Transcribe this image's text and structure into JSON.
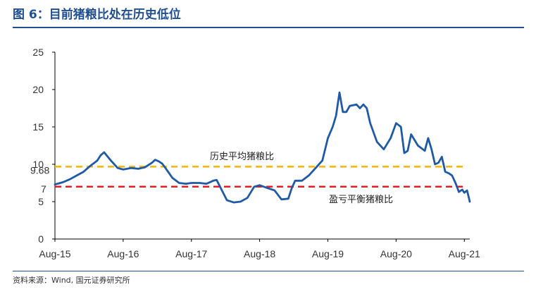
{
  "title": "图 6：目前猪粮比处在历史低位",
  "source": "资料来源：Wind, 国元证券研究所",
  "colors": {
    "title": "#1f4e91",
    "series": "#1f5aa6",
    "ref_avg": "#f2b40f",
    "ref_break_even": "#e02020",
    "ref_break_even_label": "#e02020"
  },
  "chart_data": {
    "type": "line",
    "title": "",
    "xlabel": "",
    "ylabel": "",
    "ylim": [
      0,
      25
    ],
    "yticks": [
      "0",
      "5",
      "10",
      "15",
      "20",
      "25"
    ],
    "xticks": [
      "Aug-15",
      "Aug-16",
      "Aug-17",
      "Aug-18",
      "Aug-19",
      "Aug-20",
      "Aug-21"
    ],
    "grid": false,
    "reference_lines": [
      {
        "label": "历史平均猪粮比",
        "value": 9.68,
        "value_label": "9.68",
        "style": "dashed"
      },
      {
        "label": "盈亏平衡猪粮比",
        "value": 7,
        "value_label": "7",
        "style": "dashed"
      }
    ],
    "series": [
      {
        "name": "",
        "x": [
          2015.58,
          2015.7,
          2015.8,
          2015.9,
          2016.0,
          2016.1,
          2016.2,
          2016.25,
          2016.3,
          2016.4,
          2016.5,
          2016.58,
          2016.7,
          2016.8,
          2016.9,
          2017.0,
          2017.05,
          2017.1,
          2017.15,
          2017.2,
          2017.3,
          2017.4,
          2017.5,
          2017.58,
          2017.7,
          2017.8,
          2017.9,
          2017.95,
          2018.0,
          2018.1,
          2018.2,
          2018.3,
          2018.4,
          2018.5,
          2018.58,
          2018.7,
          2018.8,
          2018.9,
          2019.0,
          2019.05,
          2019.1,
          2019.2,
          2019.3,
          2019.4,
          2019.5,
          2019.58,
          2019.65,
          2019.7,
          2019.75,
          2019.8,
          2019.85,
          2019.9,
          2020.0,
          2020.05,
          2020.1,
          2020.15,
          2020.2,
          2020.3,
          2020.4,
          2020.5,
          2020.58,
          2020.65,
          2020.7,
          2020.75,
          2020.8,
          2020.9,
          2021.0,
          2021.05,
          2021.1,
          2021.15,
          2021.2,
          2021.25,
          2021.3,
          2021.35,
          2021.4,
          2021.45,
          2021.5,
          2021.55,
          2021.58,
          2021.62,
          2021.66
        ],
        "values": [
          7.3,
          7.6,
          8.0,
          8.5,
          9.0,
          9.8,
          10.5,
          11.2,
          11.6,
          10.5,
          9.5,
          9.3,
          9.5,
          9.4,
          9.6,
          10.2,
          10.6,
          10.4,
          10.1,
          9.5,
          8.2,
          7.5,
          7.4,
          7.5,
          7.5,
          7.4,
          7.8,
          7.9,
          7.0,
          5.2,
          4.9,
          5.0,
          5.5,
          7.0,
          7.2,
          6.8,
          6.5,
          5.3,
          5.4,
          6.8,
          7.8,
          7.8,
          8.5,
          9.5,
          10.5,
          13.5,
          15.0,
          16.5,
          19.6,
          17.0,
          17.0,
          17.8,
          18.0,
          17.5,
          18.0,
          17.5,
          15.5,
          13.0,
          12.0,
          13.5,
          15.5,
          15.0,
          11.5,
          11.8,
          14.0,
          12.5,
          11.8,
          13.5,
          12.0,
          10.0,
          10.2,
          11.0,
          9.0,
          8.8,
          8.5,
          7.5,
          6.3,
          6.6,
          6.2,
          6.5,
          5.0
        ]
      }
    ]
  }
}
